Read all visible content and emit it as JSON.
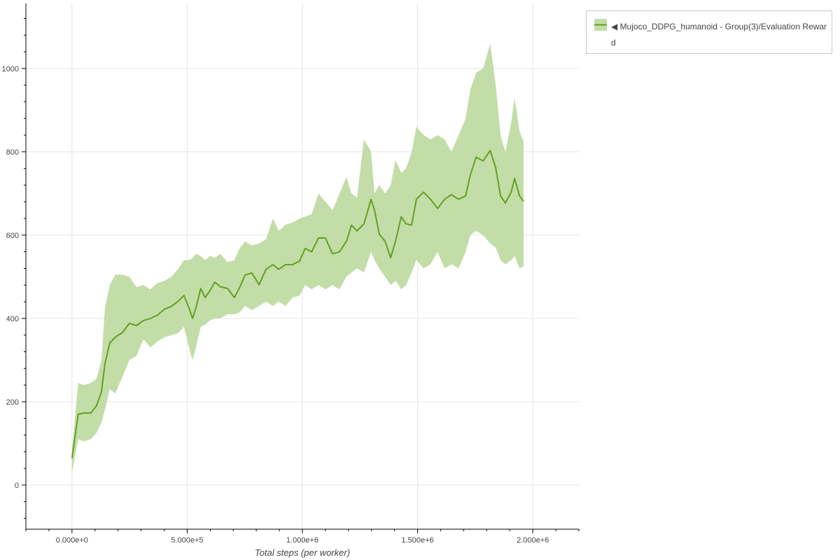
{
  "chart_data": {
    "type": "area",
    "title": "",
    "xlabel": "Total steps (per worker)",
    "ylabel": "",
    "xlim": [
      -200000,
      2200000
    ],
    "ylim": [
      -106,
      1156
    ],
    "grid": true,
    "legend_placement": "outside-top-right",
    "x_ticks": [
      0,
      500000,
      1000000,
      1500000,
      2000000
    ],
    "x_tick_labels": [
      "0.000e+0",
      "5.000e+5",
      "1.000e+6",
      "1.500e+6",
      "2.000e+6"
    ],
    "y_ticks": [
      0,
      200,
      400,
      600,
      800,
      1000
    ],
    "y_tick_labels": [
      "0",
      "200",
      "400",
      "600",
      "800",
      "1000"
    ],
    "colors": {
      "band": "#c3dda8",
      "line": "#62a01e"
    },
    "series": [
      {
        "name": "◀ Mujoco_DDPG_humanoid - Group(3)/Evaluation Reward",
        "x": [
          0,
          27000,
          52000,
          82000,
          106000,
          128000,
          143000,
          164000,
          188000,
          219000,
          249000,
          280000,
          310000,
          340000,
          371000,
          401000,
          432000,
          462000,
          486000,
          508000,
          523000,
          538000,
          559000,
          578000,
          599000,
          620000,
          644000,
          675000,
          705000,
          729000,
          751000,
          781000,
          812000,
          842000,
          872000,
          897000,
          927000,
          957000,
          988000,
          1012000,
          1040000,
          1070000,
          1100000,
          1131000,
          1161000,
          1191000,
          1213000,
          1237000,
          1267000,
          1298000,
          1313000,
          1334000,
          1359000,
          1383000,
          1404000,
          1429000,
          1450000,
          1474000,
          1495000,
          1526000,
          1556000,
          1587000,
          1617000,
          1647000,
          1678000,
          1708000,
          1729000,
          1754000,
          1784000,
          1815000,
          1839000,
          1860000,
          1881000,
          1906000,
          1921000,
          1942000,
          1960000
        ],
        "mean": [
          64,
          170,
          173,
          173,
          190,
          224,
          291,
          341,
          355,
          366,
          388,
          383,
          395,
          400,
          408,
          422,
          429,
          442,
          455,
          425,
          400,
          425,
          472,
          450,
          467,
          487,
          476,
          472,
          450,
          476,
          504,
          509,
          481,
          518,
          529,
          518,
          529,
          529,
          538,
          568,
          560,
          593,
          593,
          555,
          560,
          585,
          624,
          610,
          627,
          686,
          660,
          602,
          585,
          546,
          585,
          644,
          627,
          624,
          686,
          703,
          686,
          664,
          686,
          697,
          686,
          694,
          745,
          787,
          778,
          803,
          761,
          694,
          677,
          703,
          736,
          694,
          681
        ],
        "upper": [
          80,
          245,
          240,
          245,
          255,
          300,
          425,
          480,
          505,
          505,
          500,
          475,
          480,
          470,
          485,
          490,
          500,
          520,
          540,
          540,
          545,
          555,
          550,
          540,
          550,
          545,
          555,
          535,
          540,
          570,
          585,
          575,
          580,
          590,
          640,
          610,
          625,
          630,
          640,
          645,
          650,
          700,
          680,
          660,
          700,
          740,
          700,
          690,
          830,
          800,
          700,
          720,
          700,
          720,
          780,
          750,
          760,
          800,
          860,
          840,
          830,
          840,
          830,
          800,
          840,
          880,
          950,
          990,
          1000,
          1060,
          960,
          840,
          800,
          870,
          930,
          850,
          825
        ],
        "lower": [
          30,
          110,
          105,
          110,
          125,
          150,
          180,
          230,
          220,
          260,
          300,
          310,
          350,
          330,
          345,
          355,
          360,
          365,
          380,
          330,
          300,
          330,
          380,
          385,
          395,
          400,
          400,
          410,
          410,
          415,
          430,
          420,
          430,
          440,
          430,
          440,
          430,
          450,
          455,
          480,
          470,
          480,
          470,
          480,
          470,
          500,
          510,
          520,
          510,
          560,
          540,
          520,
          500,
          480,
          490,
          470,
          480,
          510,
          540,
          520,
          530,
          560,
          520,
          530,
          520,
          560,
          600,
          610,
          600,
          580,
          570,
          540,
          530,
          540,
          550,
          520,
          525
        ]
      }
    ]
  }
}
